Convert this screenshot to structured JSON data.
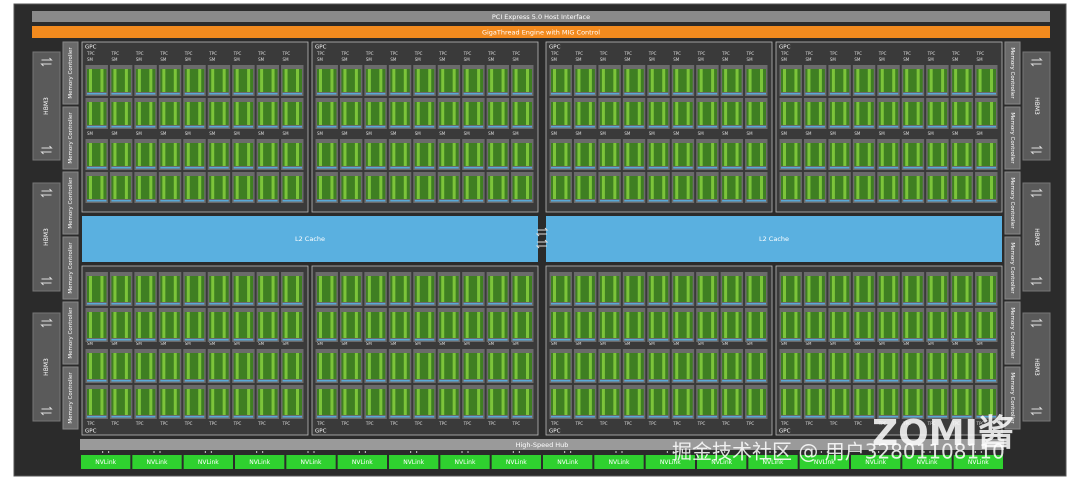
{
  "header": {
    "host_interface": "PCI Express 5.0 Host Interface",
    "gigathread": "GigaThread Engine with MIG Control"
  },
  "memory": {
    "left": {
      "hbm": [
        "HBM3",
        "HBM3",
        "HBM3"
      ],
      "controllers": [
        "Memory Controller",
        "Memory Controller",
        "Memory Controller",
        "Memory Controller",
        "Memory Controller",
        "Memory Controller"
      ]
    },
    "right": {
      "hbm": [
        "HBM3",
        "HBM3",
        "HBM3"
      ],
      "controllers": [
        "Memory Controller",
        "Memory Controller",
        "Memory Controller",
        "Memory Controller",
        "Memory Controller",
        "Memory Controller"
      ]
    }
  },
  "gpcs": [
    {
      "label": "GPC"
    },
    {
      "label": "GPC"
    },
    {
      "label": "GPC"
    },
    {
      "label": "GPC"
    },
    {
      "label": "GPC"
    },
    {
      "label": "GPC"
    },
    {
      "label": "GPC"
    },
    {
      "label": "GPC"
    }
  ],
  "tpc_label": "TPC",
  "sm_label": "SM",
  "l2_cache": [
    "L2 Cache",
    "L2 Cache"
  ],
  "hub": "High-Speed Hub",
  "nvlinks": [
    "NVLink",
    "NVLink",
    "NVLink",
    "NVLink",
    "NVLink",
    "NVLink",
    "NVLink",
    "NVLink",
    "NVLink",
    "NVLink",
    "NVLink",
    "NVLink",
    "NVLink",
    "NVLink",
    "NVLink",
    "NVLink",
    "NVLink",
    "NVLink"
  ],
  "watermark": {
    "source": "掘金技术社区 @ 用户32801108110",
    "brand": "ZOMI酱"
  }
}
